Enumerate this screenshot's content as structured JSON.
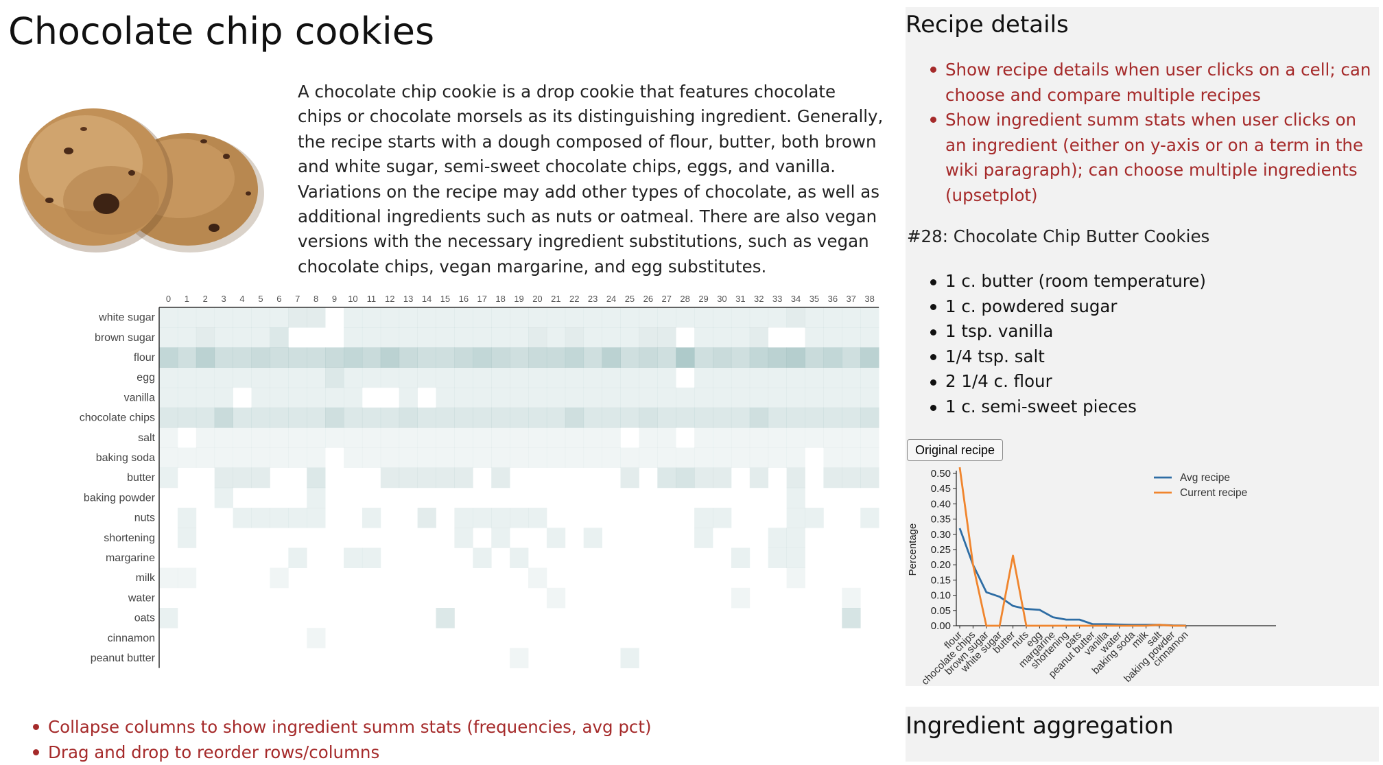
{
  "page": {
    "title": "Chocolate chip cookies",
    "description": "A chocolate chip cookie is a drop cookie that features chocolate chips or chocolate morsels as its distinguishing ingredient. Generally, the recipe starts with a dough composed of flour, butter, both brown and white sugar, semi-sweet chocolate chips, eggs, and vanilla. Variations on the recipe may add other types of chocolate, as well as additional ingredients such as nuts or oatmeal. There are also vegan versions with the necessary ingredient substitutions, such as vegan chocolate chips, vegan margarine, and egg substitutes."
  },
  "heatmap": {
    "columns": [
      "0",
      "1",
      "2",
      "3",
      "4",
      "5",
      "6",
      "7",
      "8",
      "9",
      "10",
      "11",
      "12",
      "13",
      "14",
      "15",
      "16",
      "17",
      "18",
      "19",
      "20",
      "21",
      "22",
      "23",
      "24",
      "25",
      "26",
      "27",
      "28",
      "29",
      "30",
      "31",
      "32",
      "33",
      "34",
      "35",
      "36",
      "37",
      "38"
    ],
    "rows": [
      "white sugar",
      "brown sugar",
      "flour",
      "egg",
      "vanilla",
      "chocolate chips",
      "salt",
      "baking soda",
      "butter",
      "baking powder",
      "nuts",
      "shortening",
      "margarine",
      "milk",
      "water",
      "oats",
      "cinnamon",
      "peanut butter"
    ],
    "color": "#95b9b9",
    "intensity": [
      [
        2,
        2,
        2,
        2,
        2,
        2,
        2,
        3,
        3,
        0,
        2,
        2,
        2,
        2,
        2,
        2,
        2,
        2,
        2,
        2,
        2,
        2,
        2,
        2,
        2,
        2,
        2,
        2,
        2,
        2,
        2,
        2,
        2,
        2,
        3,
        2,
        2,
        2,
        2
      ],
      [
        2,
        2,
        3,
        2,
        2,
        2,
        4,
        0,
        0,
        0,
        2,
        2,
        2,
        2,
        2,
        2,
        2,
        2,
        2,
        2,
        3,
        2,
        3,
        2,
        2,
        2,
        3,
        3,
        0,
        2,
        2,
        2,
        3,
        0,
        0,
        2,
        2,
        2,
        2
      ],
      [
        8,
        6,
        9,
        6,
        6,
        7,
        6,
        6,
        6,
        7,
        8,
        7,
        9,
        7,
        6,
        6,
        7,
        8,
        7,
        6,
        7,
        7,
        8,
        6,
        9,
        6,
        7,
        6,
        11,
        6,
        7,
        6,
        8,
        9,
        10,
        7,
        8,
        6,
        9
      ],
      [
        2,
        2,
        2,
        2,
        2,
        2,
        2,
        2,
        2,
        4,
        2,
        2,
        2,
        2,
        2,
        2,
        2,
        2,
        2,
        2,
        2,
        2,
        2,
        2,
        2,
        2,
        2,
        2,
        0,
        2,
        2,
        2,
        2,
        2,
        2,
        2,
        2,
        2,
        2
      ],
      [
        2,
        2,
        2,
        2,
        0,
        2,
        2,
        2,
        2,
        2,
        2,
        0,
        0,
        2,
        0,
        2,
        2,
        2,
        2,
        2,
        2,
        2,
        2,
        2,
        2,
        2,
        2,
        2,
        2,
        2,
        2,
        2,
        2,
        2,
        2,
        2,
        2,
        2,
        2
      ],
      [
        4,
        4,
        4,
        7,
        4,
        4,
        4,
        4,
        4,
        6,
        4,
        4,
        4,
        5,
        4,
        4,
        4,
        4,
        4,
        4,
        4,
        4,
        6,
        4,
        4,
        4,
        5,
        4,
        4,
        4,
        4,
        4,
        6,
        4,
        4,
        4,
        4,
        4,
        5
      ],
      [
        1,
        0,
        1,
        1,
        1,
        1,
        1,
        1,
        1,
        1,
        1,
        1,
        1,
        1,
        1,
        1,
        1,
        1,
        1,
        1,
        1,
        1,
        1,
        1,
        1,
        0,
        1,
        1,
        0,
        1,
        1,
        1,
        1,
        1,
        1,
        1,
        1,
        1,
        1
      ],
      [
        1,
        1,
        1,
        1,
        1,
        1,
        1,
        1,
        1,
        0,
        1,
        1,
        1,
        1,
        1,
        1,
        1,
        1,
        1,
        1,
        1,
        1,
        1,
        1,
        1,
        1,
        1,
        1,
        1,
        1,
        1,
        1,
        1,
        1,
        1,
        0,
        1,
        1,
        1
      ],
      [
        2,
        0,
        0,
        3,
        3,
        3,
        0,
        0,
        4,
        0,
        0,
        0,
        3,
        3,
        3,
        3,
        3,
        0,
        3,
        0,
        0,
        0,
        0,
        0,
        0,
        3,
        0,
        4,
        5,
        3,
        3,
        0,
        3,
        0,
        3,
        0,
        3,
        3,
        3
      ],
      [
        0,
        0,
        0,
        2,
        0,
        0,
        0,
        0,
        2,
        0,
        0,
        0,
        0,
        0,
        0,
        0,
        0,
        0,
        0,
        0,
        0,
        0,
        0,
        0,
        0,
        0,
        0,
        0,
        0,
        0,
        0,
        0,
        0,
        0,
        2,
        0,
        0,
        0,
        0
      ],
      [
        0,
        2,
        0,
        0,
        2,
        2,
        2,
        2,
        2,
        0,
        0,
        2,
        0,
        0,
        3,
        0,
        2,
        2,
        2,
        2,
        2,
        0,
        0,
        0,
        0,
        0,
        0,
        0,
        0,
        2,
        2,
        0,
        0,
        0,
        2,
        2,
        0,
        0,
        2
      ],
      [
        0,
        2,
        0,
        0,
        0,
        0,
        0,
        0,
        0,
        0,
        0,
        0,
        0,
        0,
        0,
        0,
        2,
        0,
        2,
        0,
        0,
        2,
        0,
        2,
        0,
        0,
        0,
        0,
        0,
        2,
        0,
        0,
        0,
        2,
        2,
        0,
        0,
        0,
        0
      ],
      [
        0,
        0,
        0,
        0,
        0,
        0,
        0,
        2,
        0,
        0,
        2,
        2,
        0,
        0,
        0,
        0,
        0,
        2,
        0,
        2,
        0,
        0,
        0,
        0,
        0,
        0,
        0,
        0,
        0,
        0,
        0,
        2,
        0,
        2,
        2,
        0,
        0,
        0,
        0
      ],
      [
        1,
        1,
        0,
        0,
        0,
        0,
        1,
        0,
        0,
        0,
        0,
        0,
        0,
        0,
        0,
        0,
        0,
        0,
        0,
        0,
        1,
        0,
        0,
        0,
        0,
        0,
        0,
        0,
        0,
        0,
        0,
        0,
        0,
        0,
        1,
        0,
        0,
        0,
        0
      ],
      [
        0,
        0,
        0,
        0,
        0,
        0,
        0,
        0,
        0,
        0,
        0,
        0,
        0,
        0,
        0,
        0,
        0,
        0,
        0,
        0,
        0,
        1,
        0,
        0,
        0,
        0,
        0,
        0,
        0,
        0,
        0,
        1,
        0,
        0,
        0,
        0,
        0,
        1,
        0
      ],
      [
        2,
        0,
        0,
        0,
        0,
        0,
        0,
        0,
        0,
        0,
        0,
        0,
        0,
        0,
        0,
        4,
        0,
        0,
        0,
        0,
        0,
        0,
        0,
        0,
        0,
        0,
        0,
        0,
        0,
        0,
        0,
        0,
        0,
        0,
        0,
        0,
        0,
        5,
        0
      ],
      [
        0,
        0,
        0,
        0,
        0,
        0,
        0,
        0,
        1,
        0,
        0,
        0,
        0,
        0,
        0,
        0,
        0,
        0,
        0,
        0,
        0,
        0,
        0,
        0,
        0,
        0,
        0,
        0,
        0,
        0,
        0,
        0,
        0,
        0,
        0,
        0,
        0,
        0,
        0
      ],
      [
        0,
        0,
        0,
        0,
        0,
        0,
        0,
        0,
        0,
        0,
        0,
        0,
        0,
        0,
        0,
        0,
        0,
        0,
        0,
        1,
        0,
        0,
        0,
        0,
        0,
        2,
        0,
        0,
        0,
        0,
        0,
        0,
        0,
        0,
        0,
        0,
        0,
        0,
        0
      ]
    ]
  },
  "bottom_notes": [
    "Collapse columns to show ingredient summ stats (frequencies, avg pct)",
    "Drag and drop to reorder rows/columns"
  ],
  "details": {
    "title": "Recipe details",
    "notes": [
      "Show recipe details when user clicks on a cell; can choose and compare multiple recipes",
      "Show ingredient summ stats when user clicks on an ingredient (either on y-axis or on a term in the wiki paragraph); can choose multiple ingredients (upsetplot)"
    ],
    "recipe_heading": "#28: Chocolate Chip Butter Cookies",
    "ingredients": [
      "1 c. butter (room temperature)",
      "1 c. powdered sugar",
      "1 tsp. vanilla",
      "1/4 tsp. salt",
      "2 1/4 c. flour",
      "1 c. semi-sweet pieces"
    ],
    "original_recipe_label": "Original recipe"
  },
  "chart_data": {
    "type": "line",
    "ylabel": "Percentage",
    "xlabel": "",
    "ylim": [
      0,
      0.5
    ],
    "yticks": [
      "0.00",
      "0.05",
      "0.10",
      "0.15",
      "0.20",
      "0.25",
      "0.30",
      "0.35",
      "0.40",
      "0.45",
      "0.50"
    ],
    "categories": [
      "flour",
      "chocolate chips",
      "brown sugar",
      "white sugar",
      "butter",
      "nuts",
      "egg",
      "margarine",
      "shortening",
      "oats",
      "peanut butter",
      "vanilla",
      "water",
      "baking soda",
      "milk",
      "salt",
      "baking powder",
      "cinnamon"
    ],
    "series": [
      {
        "name": "Avg recipe",
        "color": "#2e6da4",
        "values": [
          0.32,
          0.2,
          0.11,
          0.095,
          0.065,
          0.055,
          0.052,
          0.028,
          0.02,
          0.02,
          0.005,
          0.005,
          0.004,
          0.003,
          0.003,
          0.003,
          0.001,
          0.0005
        ]
      },
      {
        "name": "Current recipe",
        "color": "#f0852d",
        "values": [
          0.52,
          0.2,
          0.0,
          0.0,
          0.23,
          0.0,
          0.0,
          0.0,
          0.0,
          0.0,
          0.0,
          0.0,
          0.0,
          0.0,
          0.0,
          0.003,
          0.0,
          0.0
        ]
      }
    ],
    "legend": "top-right",
    "grid": false
  },
  "aggregation": {
    "title": "Ingredient aggregation"
  }
}
